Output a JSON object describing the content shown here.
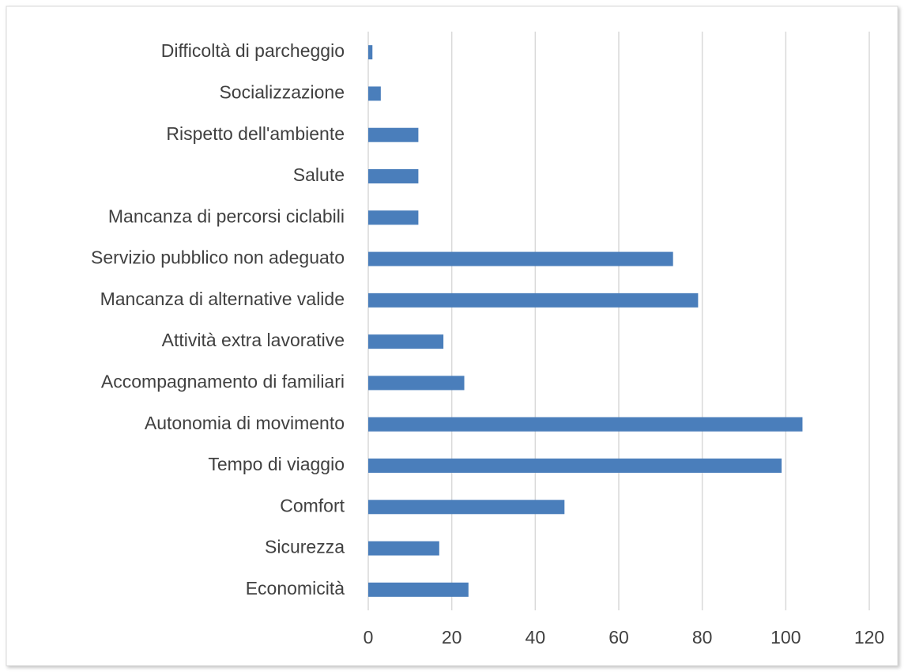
{
  "chart_data": {
    "type": "barh",
    "categories": [
      "Economicità",
      "Sicurezza",
      "Comfort",
      "Tempo di viaggio",
      "Autonomia di movimento",
      "Accompagnamento di familiari",
      "Attività extra lavorative",
      "Mancanza di alternative valide",
      "Servizio pubblico non adeguato",
      "Mancanza di percorsi ciclabili",
      "Salute",
      "Rispetto dell'ambiente",
      "Socializzazione",
      "Difficoltà di parcheggio"
    ],
    "values": [
      24,
      17,
      47,
      99,
      104,
      23,
      18,
      79,
      73,
      12,
      12,
      12,
      3,
      1
    ],
    "color": "#4a7ebb",
    "xlim": [
      0,
      120
    ],
    "xticks": [
      0,
      20,
      40,
      60,
      80,
      100,
      120
    ],
    "grid": true
  }
}
